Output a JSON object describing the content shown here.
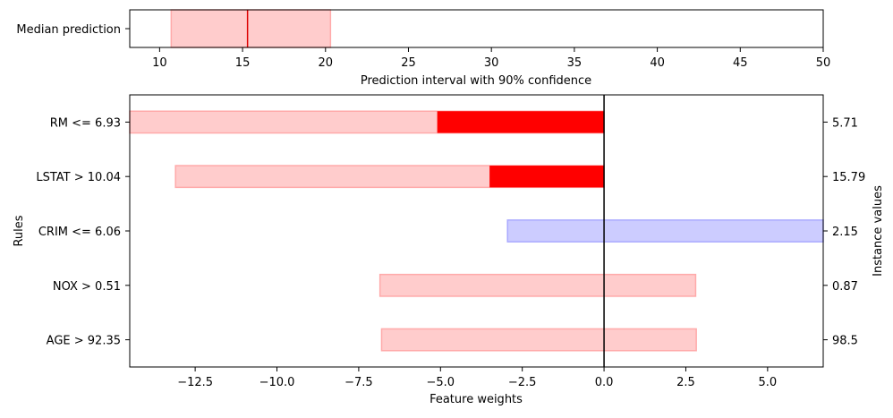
{
  "chart_data": [
    {
      "type": "bar",
      "orientation": "horizontal",
      "categories": [
        "Median prediction"
      ],
      "interval": {
        "low": 10.7,
        "median": 15.3,
        "high": 20.3
      },
      "xlim": [
        8.2,
        50
      ],
      "xticks": [
        10,
        15,
        20,
        25,
        30,
        35,
        40,
        45,
        50
      ],
      "xtick_labels": [
        "10",
        "15",
        "20",
        "25",
        "30",
        "35",
        "40",
        "45",
        "50"
      ],
      "xlabel": "Prediction interval with 90% confidence",
      "colors": {
        "interval_fill": "#ffcccc",
        "interval_edge": "#ffaaaa",
        "median_line": "#dd0000"
      }
    },
    {
      "type": "bar",
      "orientation": "horizontal",
      "categories": [
        "RM <= 6.93",
        "LSTAT > 10.04",
        "CRIM <= 6.06",
        "NOX > 0.51",
        "AGE > 92.35"
      ],
      "instance_values": [
        "5.71",
        "15.79",
        "2.15",
        "0.87",
        "98.5"
      ],
      "weights": [
        -5.1,
        -3.5,
        0.0,
        0.0,
        0.0
      ],
      "uncertainty": [
        [
          -14.5,
          0.0
        ],
        [
          -13.1,
          0.0
        ],
        [
          -2.95,
          6.7
        ],
        [
          -6.85,
          2.8
        ],
        [
          -6.8,
          2.82
        ]
      ],
      "bar_colors": [
        "red",
        "red",
        "blue",
        "red",
        "red"
      ],
      "xlim": [
        -14.5,
        6.7
      ],
      "xticks": [
        -12.5,
        -10.0,
        -7.5,
        -5.0,
        -2.5,
        0.0,
        2.5,
        5.0
      ],
      "xtick_labels": [
        "−12.5",
        "−10.0",
        "−7.5",
        "−5.0",
        "−2.5",
        "0.0",
        "2.5",
        "5.0"
      ],
      "xlabel": "Feature weights",
      "ylabel": "Rules",
      "ylabel_right": "Instance values",
      "colors": {
        "red_fill": "#ff0000",
        "red_light": "#ffcccc",
        "red_edge": "#ffaaaa",
        "blue_fill": "#0000ff",
        "blue_light": "#ccccff",
        "blue_edge": "#aaaaff",
        "zero_line": "#000000"
      }
    }
  ]
}
